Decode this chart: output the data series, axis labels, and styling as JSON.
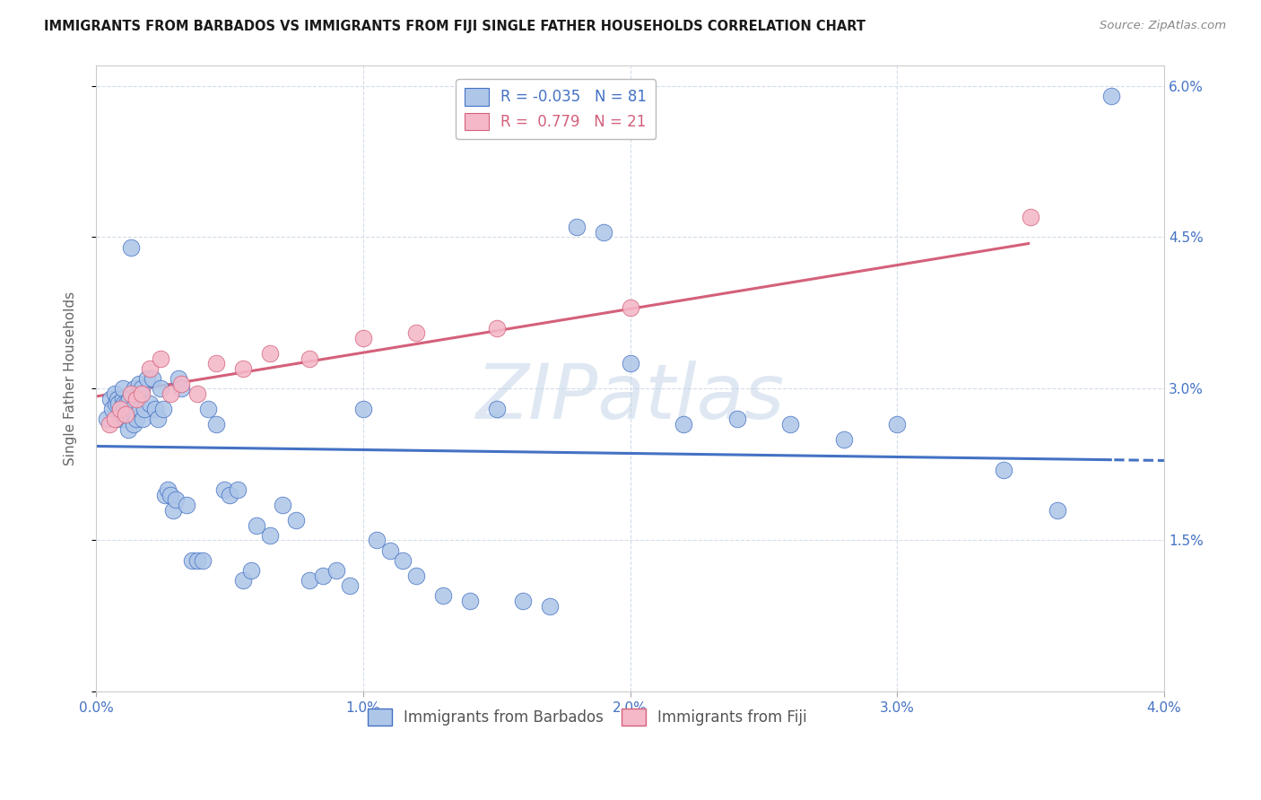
{
  "title": "IMMIGRANTS FROM BARBADOS VS IMMIGRANTS FROM FIJI SINGLE FATHER HOUSEHOLDS CORRELATION CHART",
  "source": "Source: ZipAtlas.com",
  "ylabel": "Single Father Households",
  "xlim": [
    0.0,
    0.04
  ],
  "ylim": [
    0.0,
    0.062
  ],
  "xtick_vals": [
    0.0,
    0.01,
    0.02,
    0.03,
    0.04
  ],
  "xtick_labels": [
    "0.0%",
    "1.0%",
    "2.0%",
    "3.0%",
    "4.0%"
  ],
  "ytick_vals": [
    0.0,
    0.015,
    0.03,
    0.045,
    0.06
  ],
  "ytick_labels": [
    "",
    "1.5%",
    "3.0%",
    "4.5%",
    "6.0%"
  ],
  "legend_r1": "R = ",
  "legend_v1": "-0.035",
  "legend_n1": "  N = 81",
  "legend_r2": "R =  ",
  "legend_v2": "0.779",
  "legend_n2": "  N = 21",
  "color_blue": "#aec6e8",
  "color_pink": "#f4b8c8",
  "line_color_blue": "#4472c4",
  "line_color_pink": "#d4607a",
  "watermark_text": "ZIPatlas",
  "blue_x": [
    0.0004,
    0.00055,
    0.0006,
    0.0007,
    0.00075,
    0.0008,
    0.00085,
    0.0009,
    0.00095,
    0.001,
    0.001,
    0.00105,
    0.0011,
    0.00115,
    0.0012,
    0.00125,
    0.0013,
    0.00135,
    0.0014,
    0.00145,
    0.0015,
    0.00155,
    0.0016,
    0.00165,
    0.0017,
    0.00175,
    0.0018,
    0.0019,
    0.002,
    0.0021,
    0.0022,
    0.0023,
    0.0024,
    0.0025,
    0.0026,
    0.0027,
    0.0028,
    0.0029,
    0.003,
    0.0031,
    0.0032,
    0.0034,
    0.0036,
    0.0038,
    0.004,
    0.0042,
    0.0045,
    0.0048,
    0.005,
    0.0053,
    0.0055,
    0.0058,
    0.006,
    0.0065,
    0.007,
    0.0075,
    0.008,
    0.0085,
    0.009,
    0.0095,
    0.01,
    0.0105,
    0.011,
    0.0115,
    0.012,
    0.013,
    0.014,
    0.015,
    0.016,
    0.017,
    0.018,
    0.019,
    0.02,
    0.022,
    0.024,
    0.026,
    0.028,
    0.03,
    0.034,
    0.036,
    0.038
  ],
  "blue_y": [
    0.027,
    0.029,
    0.028,
    0.0295,
    0.0285,
    0.029,
    0.0285,
    0.027,
    0.0275,
    0.029,
    0.03,
    0.0285,
    0.027,
    0.0285,
    0.026,
    0.029,
    0.044,
    0.028,
    0.0265,
    0.03,
    0.027,
    0.0295,
    0.0305,
    0.028,
    0.03,
    0.027,
    0.028,
    0.031,
    0.0285,
    0.031,
    0.028,
    0.027,
    0.03,
    0.028,
    0.0195,
    0.02,
    0.0195,
    0.018,
    0.019,
    0.031,
    0.03,
    0.0185,
    0.013,
    0.013,
    0.013,
    0.028,
    0.0265,
    0.02,
    0.0195,
    0.02,
    0.011,
    0.012,
    0.0165,
    0.0155,
    0.0185,
    0.017,
    0.011,
    0.0115,
    0.012,
    0.0105,
    0.028,
    0.015,
    0.014,
    0.013,
    0.0115,
    0.0095,
    0.009,
    0.028,
    0.009,
    0.0085,
    0.046,
    0.0455,
    0.0325,
    0.0265,
    0.027,
    0.0265,
    0.025,
    0.0265,
    0.022,
    0.018,
    0.059
  ],
  "pink_x": [
    0.0005,
    0.0007,
    0.0009,
    0.0011,
    0.0013,
    0.0015,
    0.0017,
    0.002,
    0.0024,
    0.0028,
    0.0032,
    0.0038,
    0.0045,
    0.0055,
    0.0065,
    0.008,
    0.01,
    0.012,
    0.015,
    0.02,
    0.035
  ],
  "pink_y": [
    0.0265,
    0.027,
    0.028,
    0.0275,
    0.0295,
    0.029,
    0.0295,
    0.032,
    0.033,
    0.0295,
    0.0305,
    0.0295,
    0.0325,
    0.032,
    0.0335,
    0.033,
    0.035,
    0.0355,
    0.036,
    0.038,
    0.047
  ]
}
